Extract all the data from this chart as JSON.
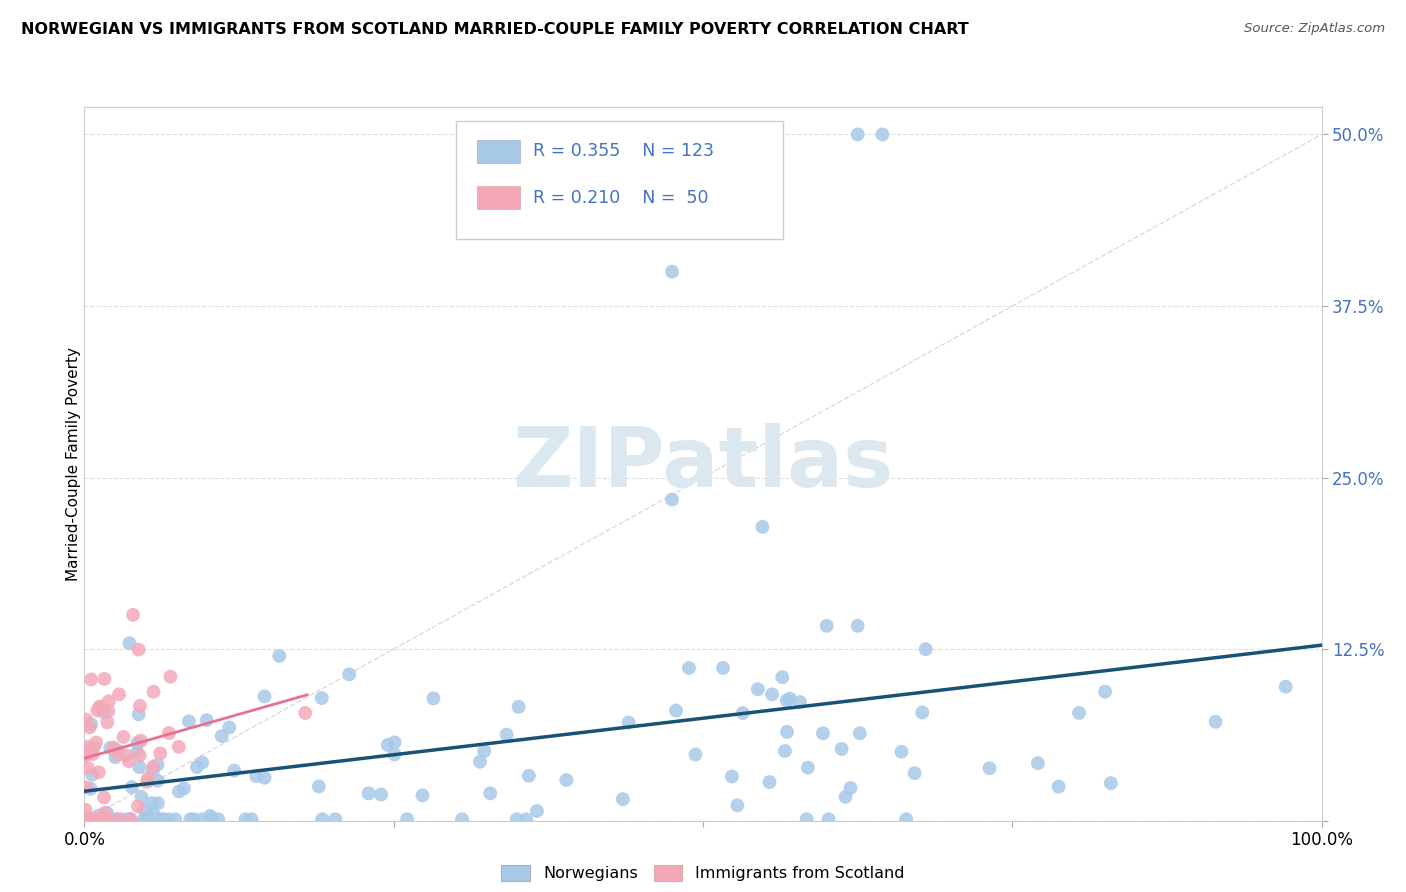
{
  "title": "NORWEGIAN VS IMMIGRANTS FROM SCOTLAND MARRIED-COUPLE FAMILY POVERTY CORRELATION CHART",
  "source": "Source: ZipAtlas.com",
  "ylabel": "Married-Couple Family Poverty",
  "norwegian_color": "#a8c8e8",
  "scottish_color": "#f4a8b8",
  "norwegian_line_color": "#1a5276",
  "scottish_line_color": "#e87090",
  "diagonal_color": "#d8d8d8",
  "grid_color": "#e0e0e0",
  "watermark_color": "#dce8f0",
  "ytick_vals": [
    0.0,
    0.125,
    0.25,
    0.375,
    0.5
  ],
  "ytick_labels": [
    "",
    "12.5%",
    "25.0%",
    "37.5%",
    "50.0%"
  ],
  "xtick_vals": [
    0.0,
    0.25,
    0.5,
    0.75,
    1.0
  ],
  "xtick_labels": [
    "0.0%",
    "",
    "",
    "",
    "100.0%"
  ],
  "legend_r1": "R = 0.355",
  "legend_n1": "N = 123",
  "legend_r2": "R = 0.210",
  "legend_n2": "N = 50",
  "bottom_legend1": "Norwegians",
  "bottom_legend2": "Immigrants from Scotland"
}
